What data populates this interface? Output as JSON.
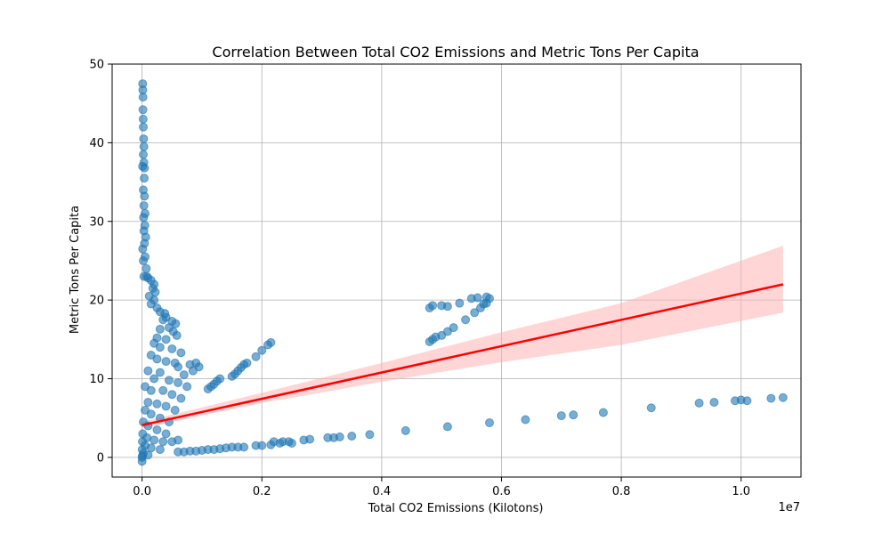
{
  "chart_data": {
    "type": "scatter",
    "title": "Correlation Between Total CO2 Emissions and Metric Tons Per Capita",
    "xlabel": "Total CO2 Emissions (Kilotons)",
    "ylabel": "Metric Tons Per Capita",
    "x_offset_label": "1e7",
    "xlim": [
      -500000,
      11000000
    ],
    "ylim": [
      -2.5,
      50
    ],
    "grid": true,
    "x_ticks": [
      0,
      2000000,
      4000000,
      6000000,
      8000000,
      10000000
    ],
    "x_tick_labels": [
      "0.0",
      "0.2",
      "0.4",
      "0.6",
      "0.8",
      "1.0"
    ],
    "y_ticks": [
      0,
      10,
      20,
      30,
      40,
      50
    ],
    "y_tick_labels": [
      "0",
      "10",
      "20",
      "30",
      "40",
      "50"
    ],
    "colors": {
      "points": "#1f77b4",
      "regression_line": "#ff0000",
      "confidence_band": "#ffb3b3"
    },
    "regression": {
      "x_start": 0,
      "y_start": 4.1,
      "x_end": 10700000,
      "y_end": 22.0
    },
    "confidence_band": [
      {
        "x": 0,
        "lower": 3.7,
        "upper": 4.5
      },
      {
        "x": 2000000,
        "lower": 6.9,
        "upper": 8.2
      },
      {
        "x": 4000000,
        "lower": 9.6,
        "upper": 12.0
      },
      {
        "x": 6000000,
        "lower": 12.1,
        "upper": 15.9
      },
      {
        "x": 8000000,
        "lower": 14.3,
        "upper": 19.6
      },
      {
        "x": 10700000,
        "lower": 18.4,
        "upper": 26.9
      }
    ],
    "series": [
      {
        "points": [
          [
            10000,
            47.5
          ],
          [
            12000,
            46.7
          ],
          [
            15000,
            45.8
          ],
          [
            14000,
            44.2
          ],
          [
            18000,
            43.0
          ],
          [
            20000,
            42.0
          ],
          [
            25000,
            40.5
          ],
          [
            30000,
            39.5
          ],
          [
            20000,
            38.5
          ],
          [
            30000,
            37.5
          ],
          [
            8000,
            37.0
          ],
          [
            40000,
            36.8
          ],
          [
            35000,
            35.5
          ],
          [
            20000,
            34.0
          ],
          [
            40000,
            33.2
          ],
          [
            30000,
            32.0
          ],
          [
            50000,
            31.0
          ],
          [
            25000,
            30.5
          ],
          [
            45000,
            29.5
          ],
          [
            30000,
            28.8
          ],
          [
            60000,
            28.0
          ],
          [
            40000,
            27.2
          ],
          [
            10000,
            26.5
          ],
          [
            50000,
            25.5
          ],
          [
            20000,
            25.0
          ],
          [
            70000,
            24.0
          ],
          [
            30000,
            23.0
          ],
          [
            80000,
            23.0
          ],
          [
            100000,
            22.8
          ],
          [
            150000,
            22.5
          ],
          [
            200000,
            22.0
          ],
          [
            180000,
            21.5
          ],
          [
            220000,
            21.0
          ],
          [
            120000,
            20.5
          ],
          [
            200000,
            20.0
          ],
          [
            150000,
            19.5
          ],
          [
            250000,
            19.0
          ],
          [
            300000,
            18.5
          ],
          [
            380000,
            18.3
          ],
          [
            400000,
            17.8
          ],
          [
            350000,
            17.5
          ],
          [
            500000,
            17.3
          ],
          [
            560000,
            17.0
          ],
          [
            450000,
            16.5
          ],
          [
            300000,
            16.3
          ],
          [
            520000,
            16.0
          ],
          [
            580000,
            15.5
          ],
          [
            250000,
            15.2
          ],
          [
            400000,
            15.0
          ],
          [
            200000,
            14.5
          ],
          [
            300000,
            14.0
          ],
          [
            500000,
            13.8
          ],
          [
            650000,
            13.3
          ],
          [
            150000,
            13.0
          ],
          [
            250000,
            12.5
          ],
          [
            400000,
            12.2
          ],
          [
            550000,
            12.0
          ],
          [
            600000,
            11.5
          ],
          [
            800000,
            11.8
          ],
          [
            900000,
            12.0
          ],
          [
            100000,
            11.0
          ],
          [
            300000,
            10.8
          ],
          [
            700000,
            10.5
          ],
          [
            850000,
            11.0
          ],
          [
            950000,
            11.5
          ],
          [
            200000,
            10.0
          ],
          [
            450000,
            9.8
          ],
          [
            600000,
            9.5
          ],
          [
            750000,
            9.0
          ],
          [
            50000,
            9.0
          ],
          [
            150000,
            8.5
          ],
          [
            350000,
            8.5
          ],
          [
            500000,
            8.0
          ],
          [
            650000,
            7.5
          ],
          [
            100000,
            7.0
          ],
          [
            250000,
            6.8
          ],
          [
            400000,
            6.5
          ],
          [
            550000,
            6.0
          ],
          [
            50000,
            6.0
          ],
          [
            150000,
            5.5
          ],
          [
            300000,
            5.0
          ],
          [
            450000,
            4.5
          ],
          [
            20000,
            4.5
          ],
          [
            100000,
            4.0
          ],
          [
            250000,
            3.5
          ],
          [
            400000,
            3.0
          ],
          [
            10000,
            3.0
          ],
          [
            80000,
            2.5
          ],
          [
            200000,
            2.2
          ],
          [
            350000,
            2.0
          ],
          [
            500000,
            2.0
          ],
          [
            600000,
            2.2
          ],
          [
            5000,
            2.0
          ],
          [
            50000,
            1.5
          ],
          [
            150000,
            1.2
          ],
          [
            300000,
            1.0
          ],
          [
            2000,
            1.0
          ],
          [
            20000,
            0.5
          ],
          [
            100000,
            0.3
          ],
          [
            0,
            0.0
          ],
          [
            0,
            -0.5
          ],
          [
            5000,
            0.2
          ],
          [
            1100000,
            8.7
          ],
          [
            1150000,
            9.0
          ],
          [
            1200000,
            9.3
          ],
          [
            1250000,
            9.7
          ],
          [
            1300000,
            10.0
          ],
          [
            1500000,
            10.3
          ],
          [
            1550000,
            10.6
          ],
          [
            1600000,
            11.0
          ],
          [
            1650000,
            11.4
          ],
          [
            1700000,
            11.8
          ],
          [
            1750000,
            12.0
          ],
          [
            1900000,
            12.8
          ],
          [
            2000000,
            13.6
          ],
          [
            2100000,
            14.3
          ],
          [
            2150000,
            14.6
          ],
          [
            600000,
            0.7
          ],
          [
            700000,
            0.7
          ],
          [
            800000,
            0.8
          ],
          [
            900000,
            0.8
          ],
          [
            1000000,
            0.9
          ],
          [
            1100000,
            1.0
          ],
          [
            1200000,
            1.0
          ],
          [
            1300000,
            1.1
          ],
          [
            1400000,
            1.2
          ],
          [
            1500000,
            1.3
          ],
          [
            1600000,
            1.3
          ],
          [
            1700000,
            1.3
          ],
          [
            1900000,
            1.5
          ],
          [
            2000000,
            1.5
          ],
          [
            2150000,
            1.6
          ],
          [
            2200000,
            2.0
          ],
          [
            2300000,
            1.8
          ],
          [
            2350000,
            2.0
          ],
          [
            2450000,
            2.0
          ],
          [
            2500000,
            1.8
          ],
          [
            2700000,
            2.2
          ],
          [
            2800000,
            2.3
          ],
          [
            3100000,
            2.5
          ],
          [
            3200000,
            2.5
          ],
          [
            3300000,
            2.6
          ],
          [
            3500000,
            2.7
          ],
          [
            3800000,
            2.9
          ],
          [
            4400000,
            3.4
          ],
          [
            5100000,
            3.9
          ],
          [
            5800000,
            4.4
          ],
          [
            6400000,
            4.8
          ],
          [
            7000000,
            5.3
          ],
          [
            7200000,
            5.4
          ],
          [
            7700000,
            5.7
          ],
          [
            8500000,
            6.3
          ],
          [
            9300000,
            6.9
          ],
          [
            9550000,
            7.0
          ],
          [
            9900000,
            7.2
          ],
          [
            10000000,
            7.3
          ],
          [
            10100000,
            7.2
          ],
          [
            10500000,
            7.5
          ],
          [
            10700000,
            7.6
          ],
          [
            4800000,
            14.7
          ],
          [
            4850000,
            15.0
          ],
          [
            4900000,
            15.3
          ],
          [
            5000000,
            15.5
          ],
          [
            5100000,
            16.0
          ],
          [
            5200000,
            16.5
          ],
          [
            5400000,
            17.5
          ],
          [
            5550000,
            18.4
          ],
          [
            4800000,
            19.0
          ],
          [
            4850000,
            19.3
          ],
          [
            5000000,
            19.3
          ],
          [
            5100000,
            19.2
          ],
          [
            5300000,
            19.6
          ],
          [
            5500000,
            20.2
          ],
          [
            5600000,
            20.3
          ],
          [
            5700000,
            19.5
          ],
          [
            5750000,
            20.4
          ],
          [
            5800000,
            20.2
          ],
          [
            5650000,
            19.0
          ],
          [
            5750000,
            19.6
          ]
        ]
      }
    ]
  }
}
